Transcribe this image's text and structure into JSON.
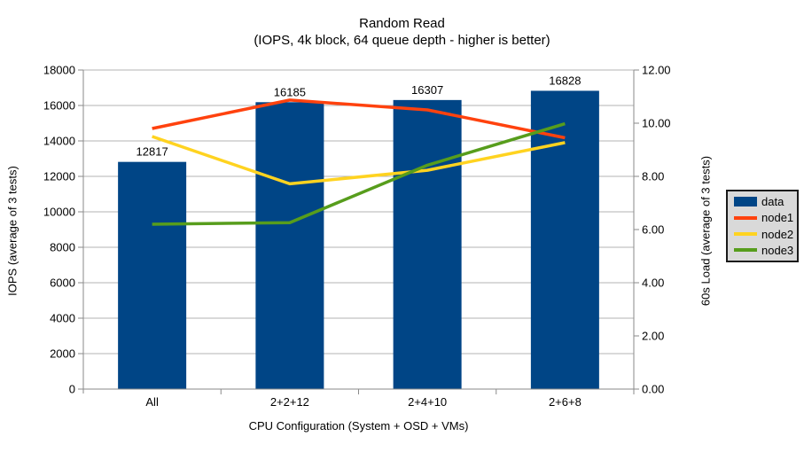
{
  "header": {
    "title": "Random Read",
    "subtitle": "(IOPS, 4k block, 64 queue depth - higher is better)"
  },
  "chart_data": {
    "type": "bar+line combo",
    "categories": [
      "All",
      "2+2+12",
      "2+4+10",
      "2+6+8"
    ],
    "bar_series": {
      "name": "data",
      "color": "#004586",
      "axis": "left",
      "values": [
        12817,
        16185,
        16307,
        16828
      ],
      "data_labels": [
        "12817",
        "16185",
        "16307",
        "16828"
      ]
    },
    "line_series": [
      {
        "name": "node1",
        "color": "#ff420e",
        "axis": "right",
        "values": [
          9.8,
          10.87,
          10.5,
          9.45
        ]
      },
      {
        "name": "node2",
        "color": "#ffd320",
        "axis": "right",
        "values": [
          9.5,
          7.72,
          8.23,
          9.27
        ]
      },
      {
        "name": "node3",
        "color": "#579d1c",
        "axis": "right",
        "values": [
          6.2,
          6.26,
          8.42,
          9.98
        ]
      }
    ],
    "axes": {
      "left": {
        "title": "IOPS (average of 3 tests)",
        "min": 0,
        "max": 18000,
        "step": 2000,
        "tick_labels": [
          "0",
          "2000",
          "4000",
          "6000",
          "8000",
          "10000",
          "12000",
          "14000",
          "16000",
          "18000"
        ]
      },
      "right": {
        "title": "60s Load (average of 3 tests)",
        "min": 0,
        "max": 12,
        "step": 2,
        "tick_labels": [
          "0.00",
          "2.00",
          "4.00",
          "6.00",
          "8.00",
          "10.00",
          "12.00"
        ]
      },
      "x": {
        "title": "CPU Configuration (System + OSD + VMs)"
      }
    },
    "legend": {
      "position": "right",
      "entries": [
        {
          "label": "data",
          "color": "#004586",
          "type": "bar"
        },
        {
          "label": "node1",
          "color": "#ff420e",
          "type": "line"
        },
        {
          "label": "node2",
          "color": "#ffd320",
          "type": "line"
        },
        {
          "label": "node3",
          "color": "#579d1c",
          "type": "line"
        }
      ]
    },
    "grid": {
      "horizontal": true,
      "color": "#b3b3b3"
    },
    "style": {
      "background": "#ffffff",
      "axis_color": "#8a8a8a",
      "text_color": "#000000",
      "legend_bg": "#d9d9d9",
      "legend_border": "#1a1a1a"
    }
  }
}
